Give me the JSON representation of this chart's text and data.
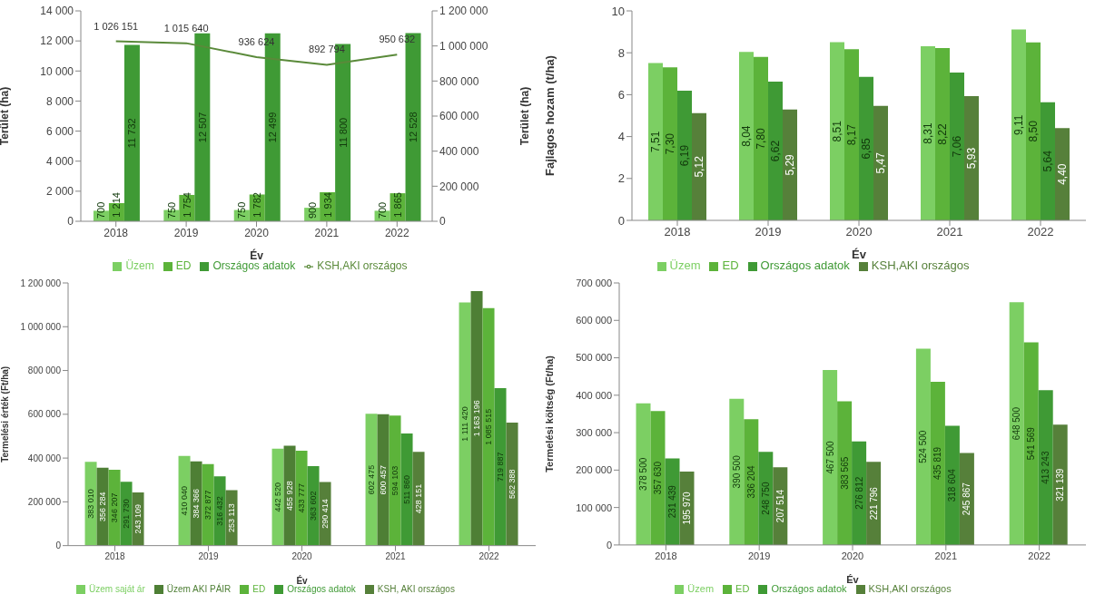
{
  "chart_data": [
    {
      "type": "bar",
      "xlabel": "Év",
      "ylabel": "Terület (ha)",
      "y2label": "Terület (ha)",
      "categories": [
        "2018",
        "2019",
        "2020",
        "2021",
        "2022"
      ],
      "series": [
        {
          "name": "Üzem",
          "color": "#7ccf63",
          "values": [
            700,
            750,
            750,
            900,
            700
          ],
          "value_labels": [
            "700",
            "750",
            "750",
            "900",
            "700"
          ]
        },
        {
          "name": "ED",
          "color": "#5cb33a",
          "values": [
            1214,
            1754,
            1782,
            1934,
            1865
          ],
          "value_labels": [
            "1 214",
            "1 754",
            "1 782",
            "1 934",
            "1 865"
          ]
        },
        {
          "name": "Országos adatok",
          "color": "#3f9a35",
          "values": [
            11732,
            12507,
            12499,
            11800,
            12528
          ],
          "value_labels": [
            "11 732",
            "12 507",
            "12 499",
            "11 800",
            "12 528"
          ]
        },
        {
          "name": "KSH,AKI országos",
          "type": "line",
          "axis": "y2",
          "color": "#5a8a3a",
          "values": [
            1026151,
            1015640,
            936624,
            892794,
            950632
          ],
          "value_labels": [
            "1 026 151",
            "1 015 640",
            "936 624",
            "892 794",
            "950 632"
          ]
        }
      ],
      "ylim": [
        0,
        14000
      ],
      "yticks": [
        0,
        {
          "value": 2000,
          "label": "2 000"
        },
        {
          "value": 4000,
          "label": "4 000"
        },
        {
          "value": 6000,
          "label": "6 000"
        },
        {
          "value": 8000,
          "label": "8 000"
        },
        {
          "value": 10000,
          "label": "10 000"
        },
        {
          "value": 12000,
          "label": "12 000"
        },
        {
          "value": 14000,
          "label": "14 000"
        }
      ],
      "y2lim": [
        0,
        1200000
      ],
      "y2ticks": [
        0,
        {
          "value": 200000,
          "label": "200 000"
        },
        {
          "value": 400000,
          "label": "400 000"
        },
        {
          "value": 600000,
          "label": "600 000"
        },
        {
          "value": 800000,
          "label": "800 000"
        },
        {
          "value": 1000000,
          "label": "1 000 000"
        },
        {
          "value": 1200000,
          "label": "1 200 000"
        }
      ],
      "legend": "bottom",
      "marker": "none"
    },
    {
      "type": "bar",
      "xlabel": "Év",
      "ylabel": "Fajlagos hozam (t/ha)",
      "categories": [
        "2018",
        "2019",
        "2020",
        "2021",
        "2022"
      ],
      "series": [
        {
          "name": "Üzem",
          "color": "#7ccf63",
          "values": [
            7.51,
            8.04,
            8.51,
            8.31,
            9.11
          ],
          "value_labels": [
            "7,51",
            "8,04",
            "8,51",
            "8,31",
            "9,11"
          ]
        },
        {
          "name": "ED",
          "color": "#5cb33a",
          "values": [
            7.3,
            7.8,
            8.17,
            8.22,
            8.5
          ],
          "value_labels": [
            "7,30",
            "7,80",
            "8,17",
            "8,22",
            "8,50"
          ]
        },
        {
          "name": "Országos adatok",
          "color": "#3f9a35",
          "values": [
            6.19,
            6.62,
            6.85,
            7.06,
            5.64
          ],
          "value_labels": [
            "6,19",
            "6,62",
            "6,85",
            "7,06",
            "5,64"
          ]
        },
        {
          "name": "KSH,AKI országos",
          "color": "#56803a",
          "values": [
            5.12,
            5.29,
            5.47,
            5.93,
            4.4
          ],
          "value_labels": [
            "5,12",
            "5,29",
            "5,47",
            "5,93",
            "4,40"
          ]
        }
      ],
      "ylim": [
        0,
        10
      ],
      "yticks": [
        0,
        2,
        4,
        6,
        8,
        10
      ],
      "legend": "bottom"
    },
    {
      "type": "bar",
      "xlabel": "Év",
      "ylabel": "Termelési érték  (Ft/ha)",
      "categories": [
        "2018",
        "2019",
        "2020",
        "2021",
        "2022"
      ],
      "series": [
        {
          "name": "Üzem saját ár",
          "color": "#7ccf63",
          "values": [
            383010,
            410040,
            442520,
            602475,
            1111420
          ],
          "value_labels": [
            "383 010",
            "410 040",
            "442 520",
            "602 475",
            "1 111 420"
          ]
        },
        {
          "name": "Üzem AKI PÁIR",
          "color": "#4e7f35",
          "values": [
            356284,
            384366,
            455928,
            600457,
            1163196
          ],
          "value_labels": [
            "356 284",
            "384 366",
            "455 928",
            "600 457",
            "1 163 196"
          ]
        },
        {
          "name": "ED",
          "color": "#5cb33a",
          "values": [
            346207,
            372877,
            433777,
            594103,
            1085515
          ],
          "value_labels": [
            "346 207",
            "372 877",
            "433 777",
            "594 103",
            "1 085 515"
          ]
        },
        {
          "name": "Országos adatok",
          "color": "#3f9a35",
          "values": [
            291730,
            316432,
            363602,
            511860,
            719887
          ],
          "value_labels": [
            "291 730",
            "316 432",
            "363 602",
            "511 860",
            "719 887"
          ]
        },
        {
          "name": "KSH, AKI országos",
          "color": "#56803a",
          "values": [
            243109,
            253113,
            290414,
            428151,
            562388
          ],
          "value_labels": [
            "243 109",
            "253 113",
            "290 414",
            "428 151",
            "562 388"
          ]
        }
      ],
      "ylim": [
        0,
        1200000
      ],
      "yticks": [
        0,
        {
          "value": 200000,
          "label": "200 000"
        },
        {
          "value": 400000,
          "label": "400 000"
        },
        {
          "value": 600000,
          "label": "600 000"
        },
        {
          "value": 800000,
          "label": "800 000"
        },
        {
          "value": 1000000,
          "label": "1 000 000"
        },
        {
          "value": 1200000,
          "label": "1 200 000"
        }
      ],
      "legend": "bottom"
    },
    {
      "type": "bar",
      "xlabel": "Év",
      "ylabel": "Termelési költség (Ft/ha)",
      "categories": [
        "2018",
        "2019",
        "2020",
        "2021",
        "2022"
      ],
      "series": [
        {
          "name": "Üzem",
          "color": "#7ccf63",
          "values": [
            378500,
            390500,
            467500,
            524500,
            648500
          ],
          "value_labels": [
            "378 500",
            "390 500",
            "467 500",
            "524 500",
            "648 500"
          ]
        },
        {
          "name": "ED",
          "color": "#5cb33a",
          "values": [
            357630,
            336204,
            383565,
            435819,
            541569
          ],
          "value_labels": [
            "357 630",
            "336 204",
            "383 565",
            "435 819",
            "541 569"
          ]
        },
        {
          "name": "Országos adatok",
          "color": "#3f9a35",
          "values": [
            231439,
            248750,
            276812,
            318604,
            413243
          ],
          "value_labels": [
            "231 439",
            "248 750",
            "276 812",
            "318 604",
            "413 243"
          ]
        },
        {
          "name": "KSH,AKI országos",
          "color": "#56803a",
          "values": [
            195970,
            207514,
            221796,
            245867,
            321139
          ],
          "value_labels": [
            "195 970",
            "207 514",
            "221 796",
            "245 867",
            "321 139"
          ]
        }
      ],
      "ylim": [
        0,
        700000
      ],
      "yticks": [
        0,
        {
          "value": 100000,
          "label": "100 000"
        },
        {
          "value": 200000,
          "label": "200 000"
        },
        {
          "value": 300000,
          "label": "300 000"
        },
        {
          "value": 400000,
          "label": "400 000"
        },
        {
          "value": 500000,
          "label": "500 000"
        },
        {
          "value": 600000,
          "label": "600 000"
        },
        {
          "value": 700000,
          "label": "700 000"
        }
      ],
      "legend": "bottom"
    }
  ]
}
